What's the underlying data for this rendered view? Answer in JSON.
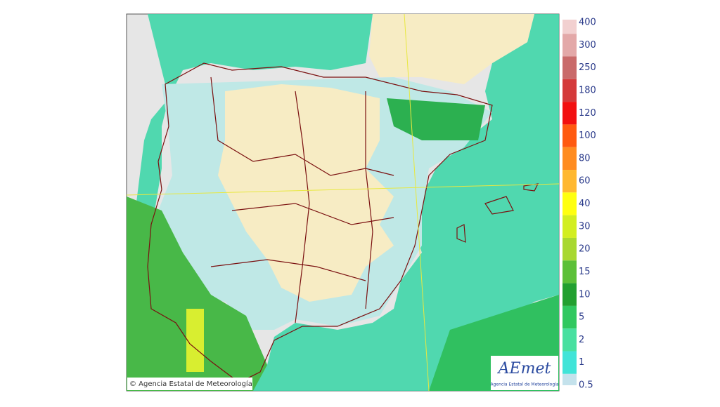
{
  "credit": "© Agencia Estatal de Meteorología",
  "logo": {
    "name": "AEmet",
    "subtitle": "Agencia Estatal de Meteorología"
  },
  "legend": {
    "items": [
      {
        "label": "400",
        "color": "#f2d0d0"
      },
      {
        "label": "300",
        "color": "#e3a8a8"
      },
      {
        "label": "250",
        "color": "#c96a6a"
      },
      {
        "label": "180",
        "color": "#d43a3a"
      },
      {
        "label": "120",
        "color": "#f21010"
      },
      {
        "label": "100",
        "color": "#ff5a10"
      },
      {
        "label": "80",
        "color": "#ff8c20"
      },
      {
        "label": "60",
        "color": "#ffb830"
      },
      {
        "label": "40",
        "color": "#ffff10"
      },
      {
        "label": "30",
        "color": "#d2ee20"
      },
      {
        "label": "20",
        "color": "#a8d830"
      },
      {
        "label": "15",
        "color": "#5cc038"
      },
      {
        "label": "10",
        "color": "#22a030"
      },
      {
        "label": "5",
        "color": "#30c860"
      },
      {
        "label": "2",
        "color": "#48e0a0"
      },
      {
        "label": "1",
        "color": "#40e4d8"
      },
      {
        "label": "0.5",
        "color": "#c4e2ec"
      }
    ]
  }
}
